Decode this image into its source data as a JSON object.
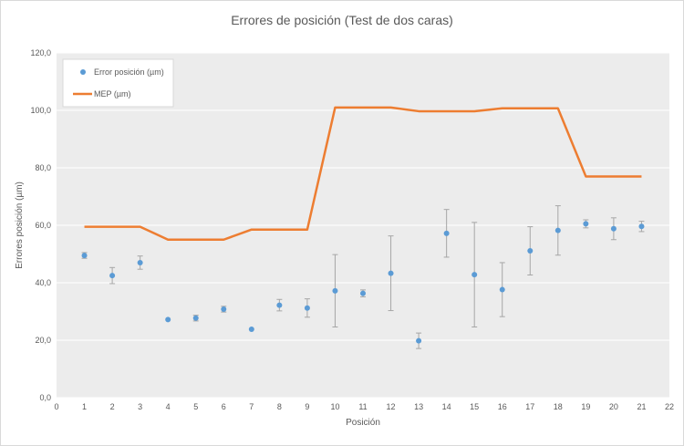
{
  "chart_data": {
    "type": "scatter",
    "title": "Errores de posición (Test de dos caras)",
    "xlabel": "Posición",
    "ylabel": "Errores posición (µm)",
    "xlim": [
      0,
      22
    ],
    "ylim": [
      0,
      120
    ],
    "xticks": [
      "0",
      "1",
      "2",
      "3",
      "4",
      "5",
      "6",
      "7",
      "8",
      "9",
      "10",
      "11",
      "12",
      "13",
      "14",
      "15",
      "16",
      "17",
      "18",
      "19",
      "20",
      "21",
      "22"
    ],
    "yticks": [
      "0,0",
      "20,0",
      "40,0",
      "60,0",
      "80,0",
      "100,0",
      "120,0"
    ],
    "grid": true,
    "legend_position": "top-left",
    "series": [
      {
        "name": "Error posición (µm)",
        "kind": "points-with-error-bars",
        "color": "#5b9bd5",
        "x": [
          1,
          2,
          3,
          4,
          5,
          6,
          7,
          8,
          9,
          10,
          11,
          12,
          13,
          14,
          15,
          16,
          17,
          18,
          19,
          20,
          21
        ],
        "y": [
          49.5,
          42.5,
          47,
          27.2,
          27.7,
          30.8,
          23.8,
          32.2,
          31.2,
          37.2,
          36.3,
          43.3,
          19.8,
          57.2,
          42.8,
          37.6,
          51.1,
          58.2,
          60.5,
          58.8,
          59.6
        ],
        "err_low": [
          1,
          2.8,
          2.3,
          0,
          1,
          1,
          0,
          2,
          3.2,
          12.6,
          1.2,
          13,
          2.7,
          8.3,
          18.2,
          9.4,
          8.4,
          8.6,
          1.4,
          3.8,
          1.8
        ],
        "err_high": [
          1,
          2.8,
          2.3,
          0,
          1,
          1,
          0,
          2,
          3.2,
          12.6,
          1.2,
          13,
          2.7,
          8.3,
          18.2,
          9.4,
          8.4,
          8.6,
          1.4,
          3.8,
          1.8
        ],
        "errorbar_color": "#a6a6a6"
      },
      {
        "name": "MEP (µm)",
        "kind": "line",
        "color": "#ed7d31",
        "x": [
          1,
          2,
          3,
          4,
          5,
          6,
          7,
          8,
          9,
          10,
          11,
          12,
          13,
          14,
          15,
          16,
          17,
          18,
          19,
          20,
          21
        ],
        "y": [
          59.5,
          59.5,
          59.5,
          55,
          55,
          55,
          58.5,
          58.5,
          58.5,
          101,
          101,
          101,
          99.7,
          99.7,
          99.7,
          100.7,
          100.7,
          100.7,
          77,
          77,
          77
        ]
      }
    ]
  }
}
